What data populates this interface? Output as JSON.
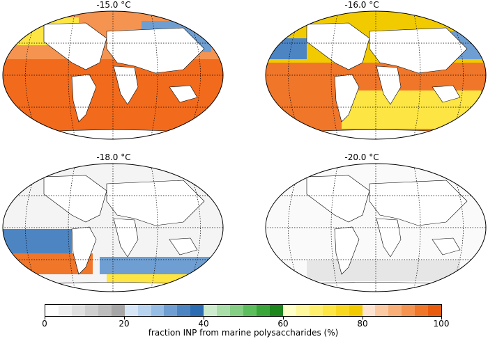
{
  "panels": [
    {
      "title": "-15.0 °C"
    },
    {
      "title": "-16.0 °C"
    },
    {
      "title": "-18.0 °C"
    },
    {
      "title": "-20.0 °C"
    }
  ],
  "colorbar": {
    "label": "fraction INP from marine polysaccharides (%)",
    "ticks": [
      "0",
      "20",
      "40",
      "60",
      "80",
      "100"
    ],
    "colors": [
      "#ffffff",
      "#f0f0f0",
      "#e0e0e0",
      "#cfcfcf",
      "#bdbdbd",
      "#a6a6a6",
      "#d6e6f6",
      "#b8d3ee",
      "#96bde4",
      "#6f9fd2",
      "#4d85c3",
      "#2b6cb3",
      "#cdeccd",
      "#a9dea9",
      "#84cf84",
      "#5cbd5c",
      "#3aa63a",
      "#1d861d",
      "#ffffc9",
      "#fff79c",
      "#ffef6f",
      "#fde543",
      "#f8d81f",
      "#f1cb00",
      "#fde4d0",
      "#fbcaa3",
      "#f8af78",
      "#f59350",
      "#f0762a",
      "#e95c0d"
    ]
  },
  "colors": {
    "ocean_high": "#f26b1d",
    "land": "#ffffff",
    "grid": "#000000"
  }
}
